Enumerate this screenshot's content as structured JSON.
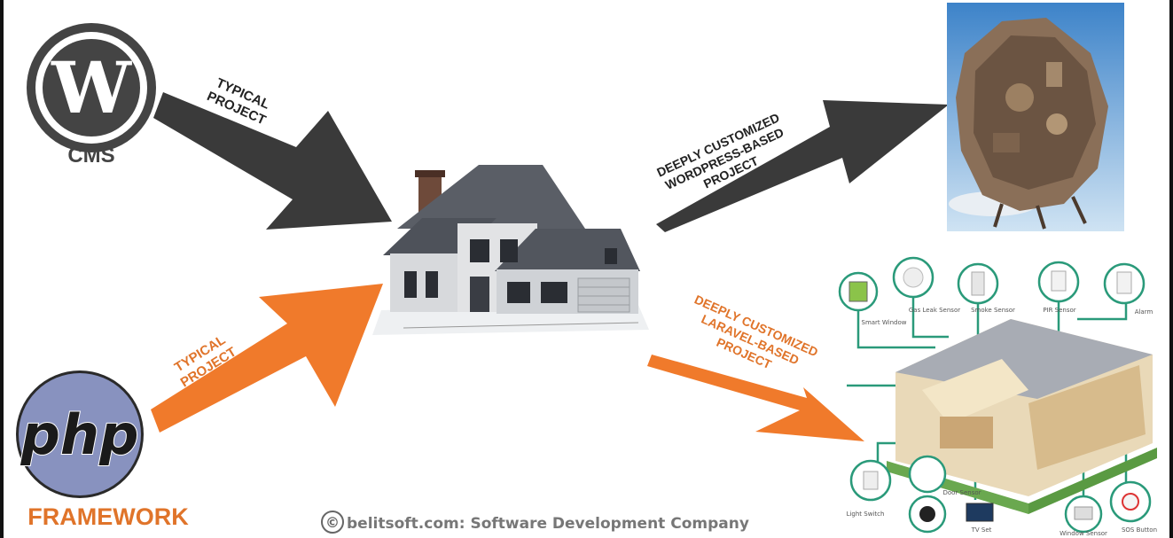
{
  "cms": {
    "logo_letter": "W",
    "label": "CMS"
  },
  "php": {
    "logo_text": "php",
    "label": "FRAMEWORK"
  },
  "arrows": {
    "wp_typical": [
      "TYPICAL",
      "PROJECT"
    ],
    "php_typical": [
      "TYPICAL",
      "PROJECT"
    ],
    "wp_custom": [
      "DEEPLY CUSTOMIZED",
      "WORDPRESS-BASED",
      "PROJECT"
    ],
    "laravel_custom": [
      "DEEPLY CUSTOMIZED",
      "LARAVEL-BASED",
      "PROJECT"
    ]
  },
  "smart_home": {
    "devices_top": [
      "Smart Window",
      "Gas Leak Sensor",
      "Smoke Sensor",
      "PIR Sensor",
      "Alarm"
    ],
    "devices_bottom": [
      "Light Switch",
      "Door Sensor",
      "TV Set",
      "Window Sensor",
      "SOS Button"
    ]
  },
  "footer": {
    "copyright_symbol": "©",
    "credit": "belitsoft.com: Software Development Company"
  },
  "colors": {
    "dark_arrow": "#3a3a3a",
    "orange": "#f07a2b",
    "php_purple": "#8892bf",
    "green_line": "#2a9a7a"
  }
}
